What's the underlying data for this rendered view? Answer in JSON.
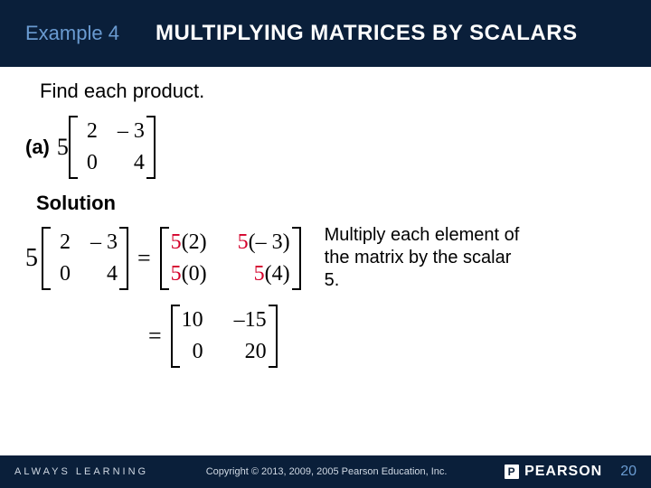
{
  "header": {
    "example_label": "Example 4",
    "title": "MULTIPLYING MATRICES BY SCALARS",
    "bg_color": "#0a1f3a",
    "example_color": "#6a9bd1",
    "title_color": "#ffffff"
  },
  "body": {
    "instruction": "Find each product.",
    "part_label": "(a)",
    "scalar": "5",
    "matrix_a": {
      "rows": [
        [
          "2",
          "– 3"
        ],
        [
          "0",
          "4"
        ]
      ]
    },
    "solution_label": "Solution",
    "step1": {
      "scalar": "5",
      "left_matrix": {
        "rows": [
          [
            "2",
            "– 3"
          ],
          [
            "0",
            "4"
          ]
        ]
      },
      "right_matrix": {
        "rows": [
          [
            "5(2)",
            "5(– 3)"
          ],
          [
            "5(0)",
            "5(4)"
          ]
        ],
        "highlight_scalar": "5",
        "highlight_color": "#d4002a"
      },
      "explain": "Multiply each element of the matrix by the scalar 5."
    },
    "step2": {
      "result_matrix": {
        "rows": [
          [
            "10",
            "–15"
          ],
          [
            "0",
            "20"
          ]
        ]
      }
    },
    "fontsize_body": 22,
    "fontsize_matrix": 24
  },
  "footer": {
    "always": "ALWAYS LEARNING",
    "copyright": "Copyright © 2013, 2009, 2005 Pearson Education, Inc.",
    "brand": "PEARSON",
    "page": "20",
    "bg_color": "#0a1f3a",
    "page_color": "#6a9bd1"
  }
}
